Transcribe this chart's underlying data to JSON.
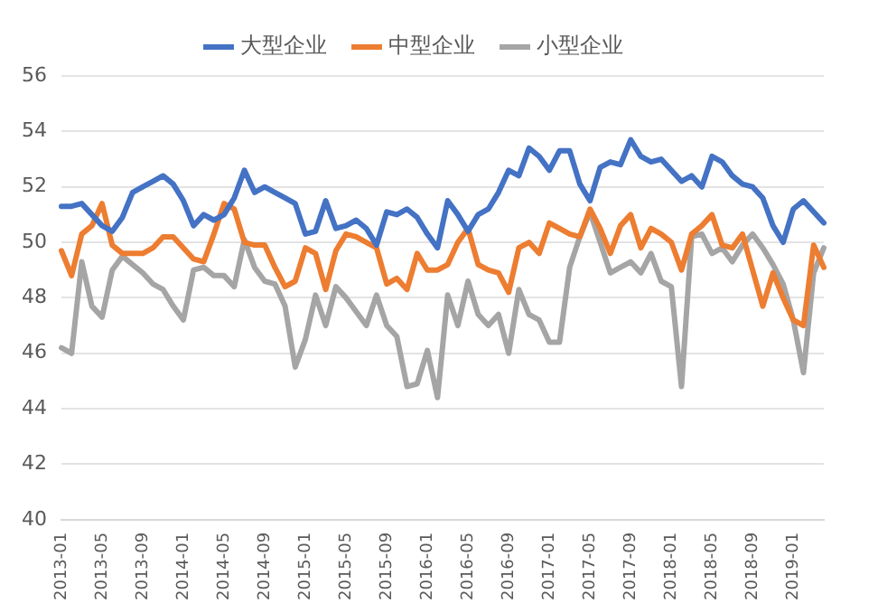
{
  "chart_data": {
    "type": "line",
    "categories": [
      "2013-01",
      null,
      null,
      null,
      "2013-05",
      null,
      null,
      null,
      "2013-09",
      null,
      null,
      null,
      "2014-01",
      null,
      null,
      null,
      "2014-05",
      null,
      null,
      null,
      "2014-09",
      null,
      null,
      null,
      "2015-01",
      null,
      null,
      null,
      "2015-05",
      null,
      null,
      null,
      "2015-09",
      null,
      null,
      null,
      "2016-01",
      null,
      null,
      null,
      "2016-05",
      null,
      null,
      null,
      "2016-09",
      null,
      null,
      null,
      "2017-01",
      null,
      null,
      null,
      "2017-05",
      null,
      null,
      null,
      "2017-09",
      null,
      null,
      null,
      "2018-01",
      null,
      null,
      null,
      "2018-05",
      null,
      null,
      null,
      "2018-09",
      null,
      null,
      null,
      "2019-01",
      null,
      null,
      null
    ],
    "series": [
      {
        "name": "大型企业",
        "color": "#4472c4",
        "values": [
          51.3,
          51.3,
          51.4,
          51.0,
          50.6,
          50.4,
          50.9,
          51.8,
          52.0,
          52.2,
          52.4,
          52.1,
          51.5,
          50.6,
          51.0,
          50.8,
          51.0,
          51.6,
          52.6,
          51.8,
          52.0,
          51.8,
          51.6,
          51.4,
          50.3,
          50.4,
          51.5,
          50.5,
          50.6,
          50.8,
          50.5,
          49.9,
          51.1,
          51.0,
          51.2,
          50.9,
          50.3,
          49.8,
          51.5,
          51.0,
          50.4,
          51.0,
          51.2,
          51.8,
          52.6,
          52.4,
          53.4,
          53.1,
          52.6,
          53.3,
          53.3,
          52.1,
          51.5,
          52.7,
          52.9,
          52.8,
          53.7,
          53.1,
          52.9,
          53.0,
          52.6,
          52.2,
          52.4,
          52.0,
          53.1,
          52.9,
          52.4,
          52.1,
          52.0,
          51.6,
          50.6,
          50.0,
          51.2,
          51.5,
          51.1,
          50.7
        ]
      },
      {
        "name": "中型企业",
        "color": "#ed7d31",
        "values": [
          49.7,
          48.8,
          50.3,
          50.6,
          51.4,
          49.9,
          49.6,
          49.6,
          49.6,
          49.8,
          50.2,
          50.2,
          49.8,
          49.4,
          49.3,
          50.3,
          51.4,
          51.2,
          50.0,
          49.9,
          49.9,
          49.1,
          48.4,
          48.6,
          49.8,
          49.6,
          48.3,
          49.7,
          50.3,
          50.2,
          50.0,
          49.8,
          48.5,
          48.7,
          48.3,
          49.6,
          49.0,
          49.0,
          49.2,
          50.0,
          50.5,
          49.2,
          49.0,
          48.9,
          48.2,
          49.8,
          50.0,
          49.6,
          50.7,
          50.5,
          50.3,
          50.2,
          51.2,
          50.5,
          49.6,
          50.6,
          51.0,
          49.8,
          50.5,
          50.3,
          50.0,
          49.0,
          50.3,
          50.6,
          51.0,
          49.9,
          49.8,
          50.3,
          49.0,
          47.7,
          48.9,
          48.0,
          47.2,
          47.0,
          49.9,
          49.1
        ]
      },
      {
        "name": "小型企业",
        "color": "#a5a5a5",
        "values": [
          46.2,
          46.0,
          49.3,
          47.7,
          47.3,
          49.0,
          49.5,
          49.2,
          48.9,
          48.5,
          48.3,
          47.7,
          47.2,
          49.0,
          49.1,
          48.8,
          48.8,
          48.4,
          50.1,
          49.1,
          48.6,
          48.5,
          47.7,
          45.5,
          46.5,
          48.1,
          47.0,
          48.4,
          48.0,
          47.5,
          47.0,
          48.1,
          47.0,
          46.6,
          44.8,
          44.9,
          46.1,
          44.4,
          48.1,
          47.0,
          48.6,
          47.4,
          47.0,
          47.4,
          46.0,
          48.3,
          47.4,
          47.2,
          46.4,
          46.4,
          49.1,
          50.2,
          51.1,
          50.0,
          48.9,
          49.1,
          49.3,
          48.9,
          49.6,
          48.6,
          48.4,
          44.8,
          50.2,
          50.3,
          49.6,
          49.8,
          49.3,
          49.9,
          50.3,
          49.8,
          49.2,
          48.5,
          47.2,
          45.3,
          48.9,
          49.8
        ]
      }
    ],
    "ylim": [
      40,
      56
    ],
    "yticks": [
      40,
      42,
      44,
      46,
      48,
      50,
      52,
      54,
      56
    ],
    "grid": "y",
    "legend": "top",
    "marker": "none",
    "line_style": "solid"
  }
}
